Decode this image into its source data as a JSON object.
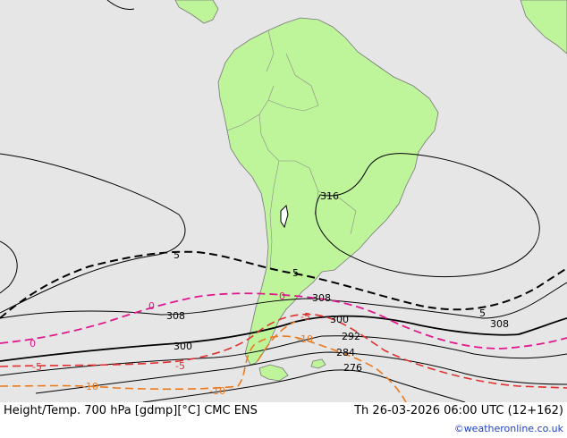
{
  "footer": {
    "left_text": "Height/Temp. 700 hPa [gdmp][°C] CMC ENS",
    "right_text": "Th 26-03-2026 06:00 UTC (12+162)",
    "credit": "©weatheronline.co.uk"
  },
  "colors": {
    "ocean": "#e6e6e6",
    "land": "#bff59a",
    "coast": "#777777",
    "height_contour": "#000000",
    "temp_zero": "#e0188c",
    "temp_minus5": "#e03030",
    "temp_minus10": "#e87a20",
    "temp_plus5": "#000000",
    "credit": "#1f3fbf"
  },
  "labels": {
    "h316": "316",
    "h308a": "308",
    "h308b": "308",
    "h308c": "308",
    "h300a": "300",
    "h300b": "300",
    "h292": "292",
    "h284": "284",
    "h276": "276",
    "t5a": "5",
    "t5b": "5",
    "t5c": "5",
    "t0a": "0",
    "t0b": "0",
    "t0c": "0",
    "tm5a": "-5",
    "tm5b": "-5",
    "tm5c": "-5",
    "tm10a": "-10",
    "tm10b": "-10",
    "tm10c": "-10"
  }
}
